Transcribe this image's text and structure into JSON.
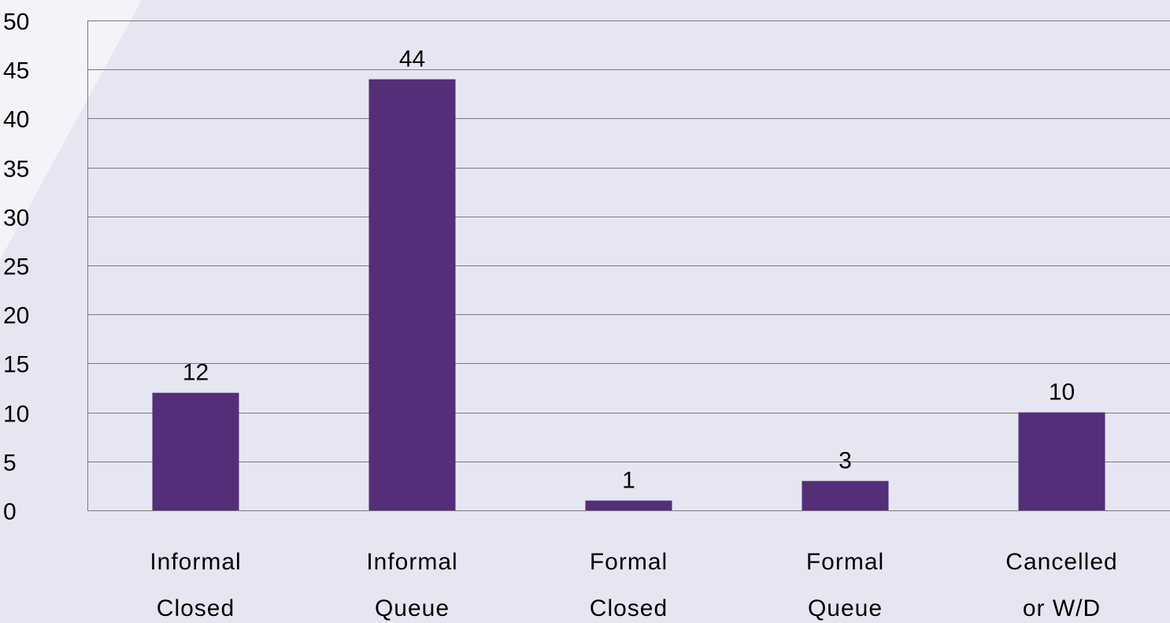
{
  "chart_data": {
    "type": "bar",
    "categories": [
      [
        "Informal",
        "Closed"
      ],
      [
        "Informal",
        "Queue"
      ],
      [
        "Formal",
        "Closed"
      ],
      [
        "Formal",
        "Queue"
      ],
      [
        "Cancelled",
        "or W/D"
      ]
    ],
    "values": [
      12,
      44,
      1,
      3,
      10
    ],
    "ylim": [
      0,
      50
    ],
    "yticks": [
      0,
      5,
      10,
      15,
      20,
      25,
      30,
      35,
      40,
      45,
      50
    ],
    "grid": true,
    "data_labels": true,
    "bar_color": "#542e78",
    "background_color": "#e6e6f2",
    "accent_color": "#f3f3fa"
  }
}
